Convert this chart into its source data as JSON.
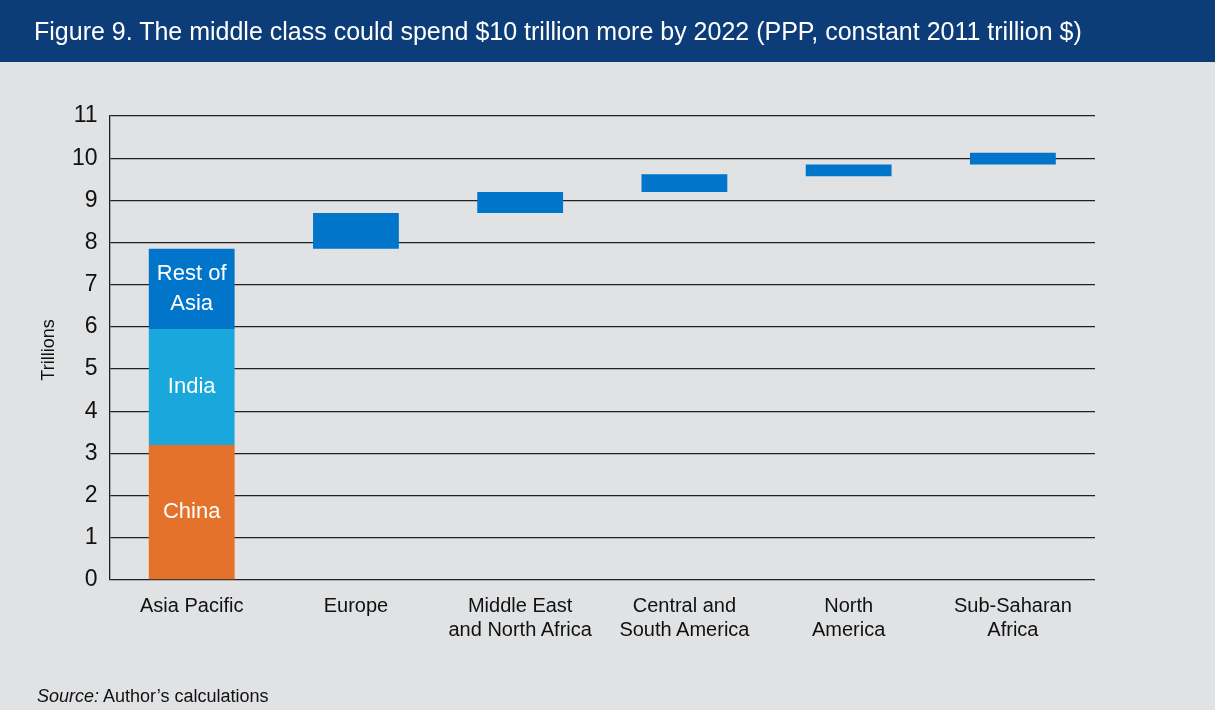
{
  "chart_data": {
    "type": "bar",
    "title": "Figure 9. The middle class could spend $10 trillion more by 2022 (PPP, constant 2011 trillion $)",
    "ylabel": "Trillions",
    "categories": [
      "Asia Pacific",
      "Europe",
      "Middle East\nand North Africa",
      "Central and\nSouth America",
      "North\nAmerica",
      "Sub-Saharan\nAfrica"
    ],
    "stacked": true,
    "series": [
      {
        "name": "China",
        "color": "#e4722a",
        "values": [
          3.2,
          null,
          null,
          null,
          null,
          null
        ]
      },
      {
        "name": "India",
        "color": "#1aa7dc",
        "values": [
          2.75,
          null,
          null,
          null,
          null,
          null
        ]
      },
      {
        "name": "Rest of Asia",
        "color": "#0075c9",
        "values": [
          1.9,
          null,
          null,
          null,
          null,
          null
        ]
      },
      {
        "color": "#0075c9",
        "values": [
          null,
          0.85,
          0.5,
          0.42,
          0.28,
          0.28
        ],
        "base": [
          null,
          7.85,
          8.7,
          9.2,
          9.57,
          9.85
        ]
      }
    ],
    "ylim": [
      0,
      11
    ],
    "yticks": [
      0,
      1,
      2,
      3,
      4,
      5,
      6,
      7,
      8,
      9,
      10,
      11
    ],
    "grid": "y",
    "legend": false,
    "annotations": [
      "Source: Author’s calculations"
    ]
  }
}
